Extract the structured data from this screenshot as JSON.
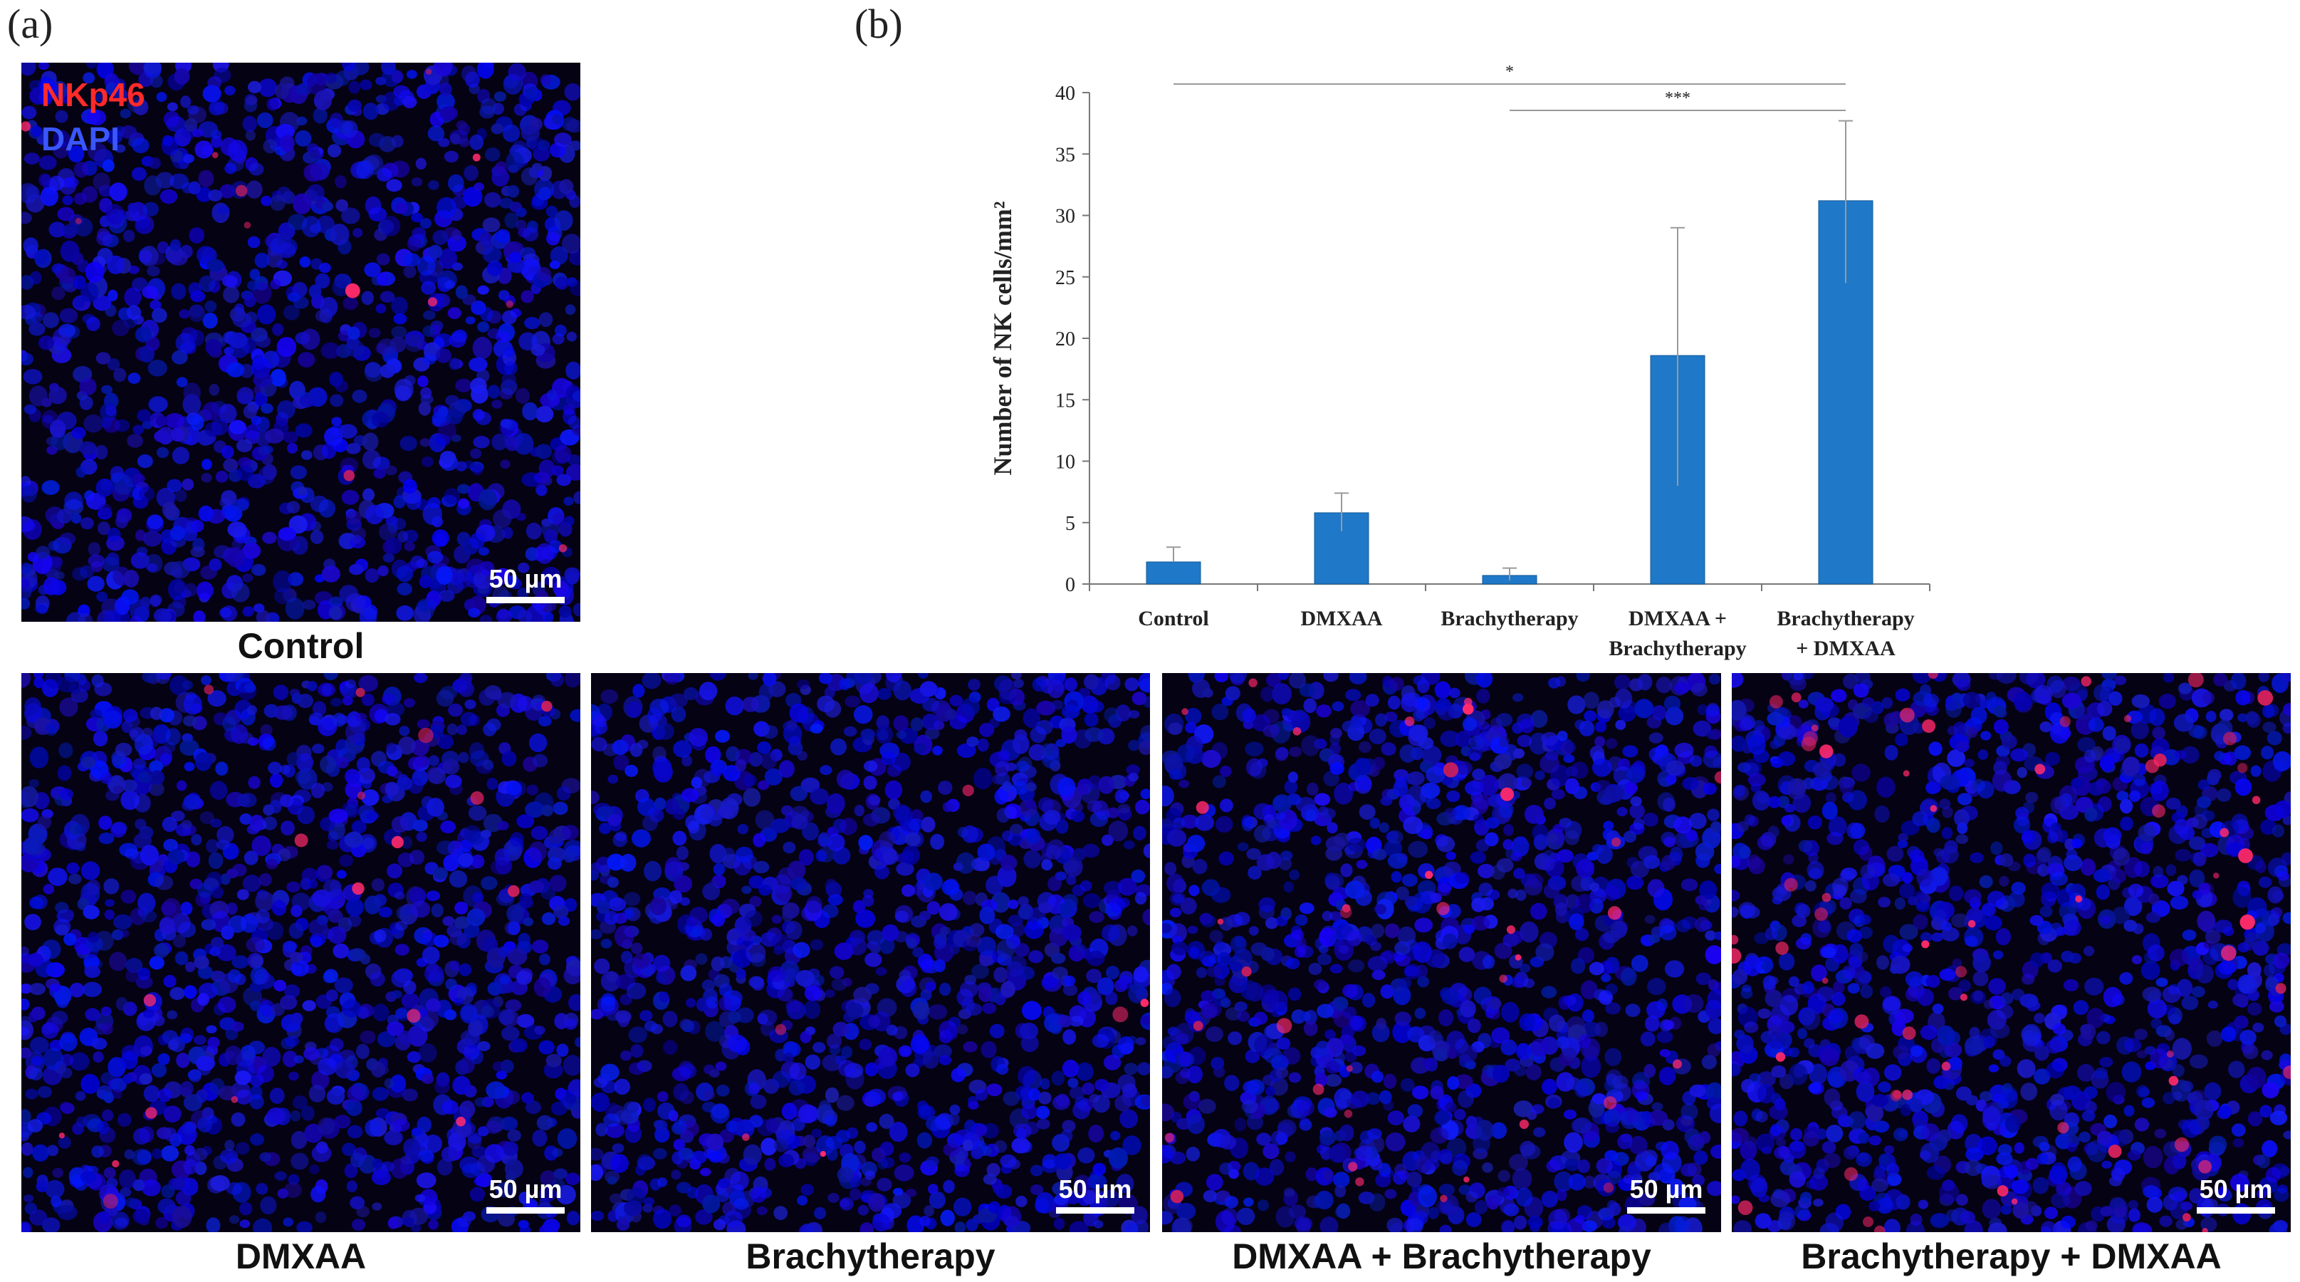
{
  "figure": {
    "panel_a_label": "(a)",
    "panel_b_label": "(b)",
    "stain_legend": {
      "marker": "NKp46",
      "counterstain": "DAPI",
      "marker_color": "#ff2a2a",
      "counterstain_color": "#3a56ff"
    },
    "scale_bar": "50 µm",
    "micrographs": [
      {
        "caption": "Control",
        "red_level": 0.15
      },
      {
        "caption": "DMXAA",
        "red_level": 0.25
      },
      {
        "caption": "Brachytherapy",
        "red_level": 0.05
      },
      {
        "caption": "DMXAA + Brachytherapy",
        "red_level": 0.55
      },
      {
        "caption": "Brachytherapy + DMXAA",
        "red_level": 1.0
      }
    ]
  },
  "chart_data": {
    "type": "bar",
    "title": "",
    "xlabel": "",
    "ylabel": "Number of NK cells/mm²",
    "ylim": [
      0,
      40
    ],
    "yticks": [
      0,
      5,
      10,
      15,
      20,
      25,
      30,
      35,
      40
    ],
    "categories": [
      [
        "Control"
      ],
      [
        "DMXAA"
      ],
      [
        "Brachytherapy"
      ],
      [
        "DMXAA +",
        "Brachytherapy"
      ],
      [
        "Brachytherapy",
        "+ DMXAA"
      ]
    ],
    "values": [
      1.8,
      5.8,
      0.7,
      18.6,
      31.2
    ],
    "error_upper": [
      3.0,
      7.4,
      1.3,
      29.0,
      37.7
    ],
    "error_lower": [
      1.8,
      4.3,
      0.3,
      8.0,
      24.5
    ],
    "bar_color": "#1f78c8",
    "grid": false,
    "significance": [
      {
        "from": 0,
        "to": 4,
        "label": "*",
        "level": 1
      },
      {
        "from": 2,
        "to": 4,
        "label": "***",
        "level": 0
      }
    ]
  }
}
